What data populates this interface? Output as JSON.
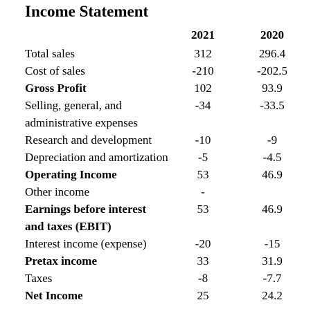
{
  "title": "Income Statement",
  "columns": [
    "2021",
    "2020"
  ],
  "rows": [
    {
      "label": [
        "Total sales"
      ],
      "bold": false,
      "v2021": "312",
      "v2020": "296.4"
    },
    {
      "label": [
        "Cost of sales"
      ],
      "bold": false,
      "v2021": "-210",
      "v2020": "-202.5"
    },
    {
      "label": [
        "Gross Profit"
      ],
      "bold": true,
      "v2021": "102",
      "v2020": "93.9"
    },
    {
      "label": [
        "Selling, general, and",
        "administrative expenses"
      ],
      "bold": false,
      "v2021": "-34",
      "v2020": "-33.5"
    },
    {
      "label": [
        "Research and development"
      ],
      "bold": false,
      "v2021": "-10",
      "v2020": "-9"
    },
    {
      "label": [
        "Depreciation and amortization"
      ],
      "bold": false,
      "v2021": "-5",
      "v2020": "-4.5"
    },
    {
      "label": [
        "Operating Income"
      ],
      "bold": true,
      "v2021": "53",
      "v2020": "46.9"
    },
    {
      "label": [
        "Other income"
      ],
      "bold": false,
      "v2021": "-",
      "v2020": ""
    },
    {
      "label": [
        "Earnings before interest",
        "and taxes (EBIT)"
      ],
      "bold": true,
      "v2021": "53",
      "v2020": "46.9"
    },
    {
      "label": [
        "Interest income (expense)"
      ],
      "bold": false,
      "v2021": "-20",
      "v2020": "-15"
    },
    {
      "label": [
        "Pretax income"
      ],
      "bold": true,
      "v2021": "33",
      "v2020": "31.9"
    },
    {
      "label": [
        "Taxes"
      ],
      "bold": false,
      "v2021": "-8",
      "v2020": "-7.7"
    },
    {
      "label": [
        "Net Income"
      ],
      "bold": true,
      "v2021": "25",
      "v2020": "24.2"
    }
  ]
}
